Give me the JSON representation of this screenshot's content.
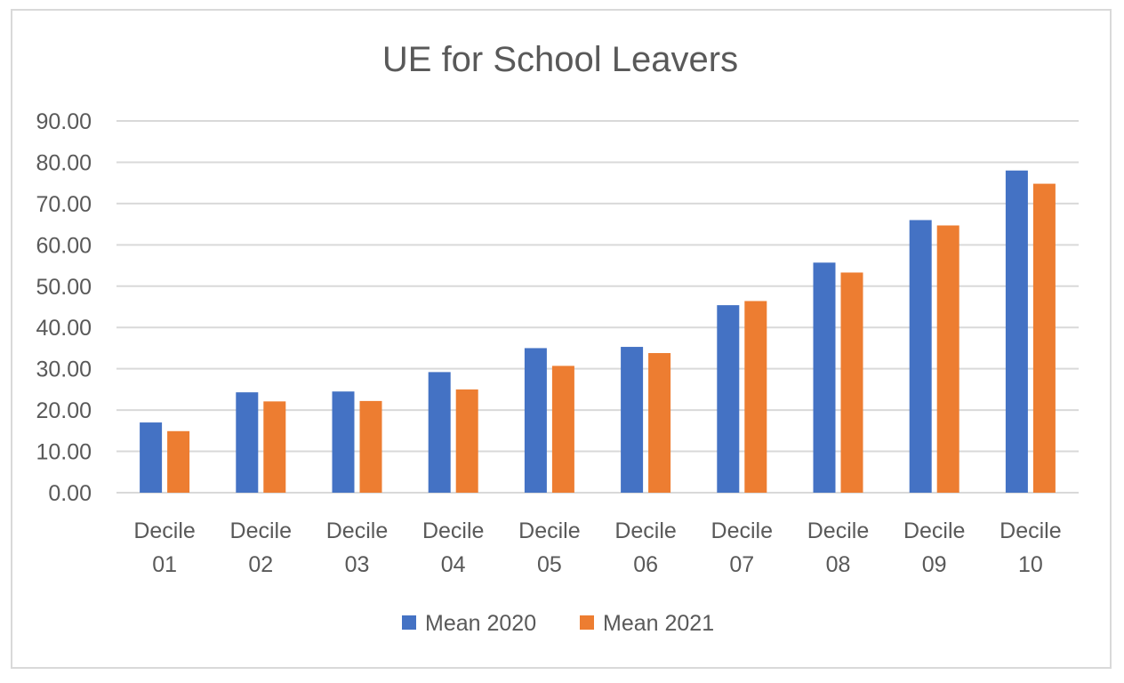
{
  "chart_data": {
    "type": "bar",
    "title": "UE for School Leavers",
    "xlabel": "",
    "ylabel": "",
    "ylim": [
      0,
      90
    ],
    "y_ticks": [
      "0.00",
      "10.00",
      "20.00",
      "30.00",
      "40.00",
      "50.00",
      "60.00",
      "70.00",
      "80.00",
      "90.00"
    ],
    "categories": [
      [
        "Decile",
        "01"
      ],
      [
        "Decile",
        "02"
      ],
      [
        "Decile",
        "03"
      ],
      [
        "Decile",
        "04"
      ],
      [
        "Decile",
        "05"
      ],
      [
        "Decile",
        "06"
      ],
      [
        "Decile",
        "07"
      ],
      [
        "Decile",
        "08"
      ],
      [
        "Decile",
        "09"
      ],
      [
        "Decile",
        "10"
      ]
    ],
    "series": [
      {
        "name": "Mean 2020",
        "color": "#4472c4",
        "values": [
          17.0,
          24.3,
          24.5,
          29.2,
          35.0,
          35.3,
          45.4,
          55.7,
          66.0,
          78.0
        ]
      },
      {
        "name": "Mean 2021",
        "color": "#ed7d31",
        "values": [
          14.9,
          22.1,
          22.2,
          25.0,
          30.7,
          33.8,
          46.4,
          53.3,
          64.7,
          74.8
        ]
      }
    ],
    "grid": true,
    "legend": "bottom-center"
  }
}
